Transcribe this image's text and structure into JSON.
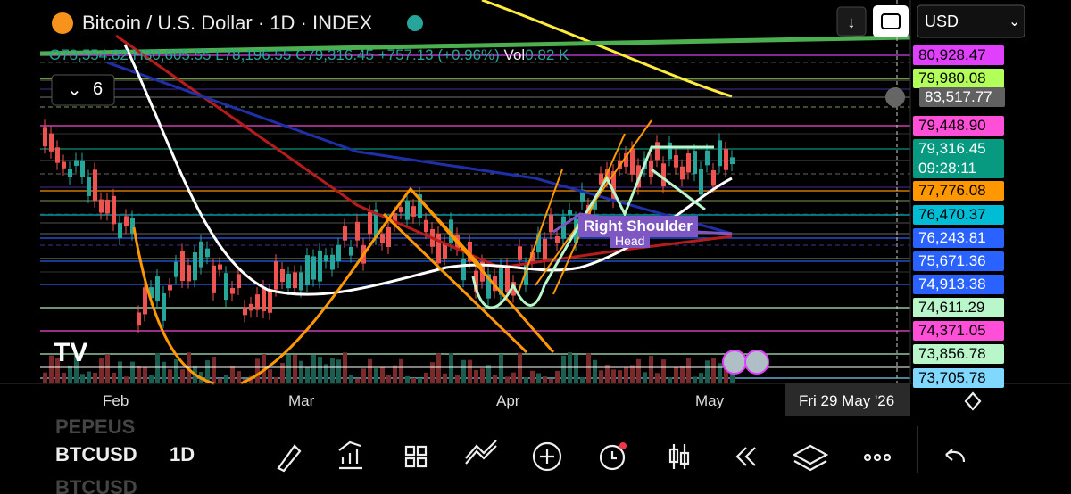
{
  "header": {
    "title": "Bitcoin / U.S. Dollar · 1D · INDEX",
    "ohlc": {
      "open": "O78,554.82",
      "high": "H80,605.55",
      "low": "L78,196.55",
      "close": "C79,316.45",
      "change": "+757.13 (+0.96%)"
    },
    "volume_label": "Vol",
    "volume_value": "0.82 K",
    "currency": "USD",
    "indicator_count": "6"
  },
  "price_labels": [
    {
      "text": "80,928.47",
      "color": "#e040fb"
    },
    {
      "text": "79,980.08",
      "color": "#b2ff59"
    },
    {
      "text": "83,517.77",
      "color": "#616161"
    },
    {
      "text": "79,448.90",
      "color": "#ff4fd8"
    },
    {
      "text": "79,316.45",
      "color": "#089981",
      "countdown": "09:28:11"
    },
    {
      "text": "77,776.08",
      "color": "#ff9800"
    },
    {
      "text": "76,470.37",
      "color": "#00bcd4"
    },
    {
      "text": "76,243.81",
      "color": "#2962ff"
    },
    {
      "text": "75,671.36",
      "color": "#2962ff"
    },
    {
      "text": "74,913.38",
      "color": "#2962ff"
    },
    {
      "text": "74,611.29",
      "color": "#b9f6ca"
    },
    {
      "text": "74,371.05",
      "color": "#ff4fd8"
    },
    {
      "text": "73,856.78",
      "color": "#b9f6ca"
    },
    {
      "text": "73,705.78",
      "color": "#80d8ff"
    }
  ],
  "annotations": [
    "Right Shoulder",
    "Head"
  ],
  "time_axis": {
    "labels": [
      "Feb",
      "Mar",
      "Apr",
      "May"
    ],
    "crosshair_date": "Fri 29 May '26"
  },
  "toolbar": {
    "prev_symbol": "PEPEUS",
    "symbol": "BTCUSD",
    "interval": "1D",
    "next_symbol": "BTCUSD"
  }
}
